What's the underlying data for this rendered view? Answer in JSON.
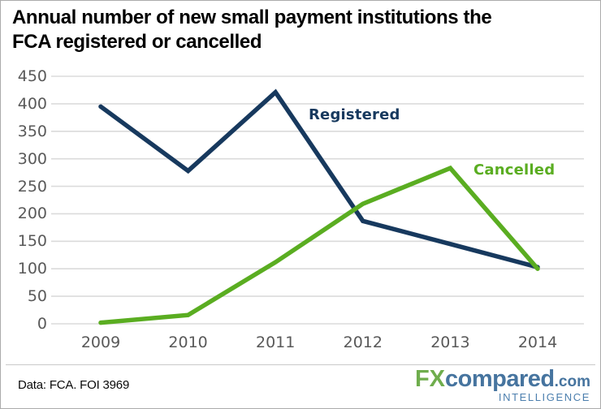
{
  "title": {
    "line1": "Annual number of new small payment institutions the",
    "line2": "FCA registered or cancelled"
  },
  "chart_data": {
    "type": "line",
    "title": "Annual number of new small payment institutions the FCA registered or cancelled",
    "x": [
      "2009",
      "2010",
      "2011",
      "2012",
      "2013",
      "2014"
    ],
    "series": [
      {
        "name": "Registered",
        "color": "#17395E",
        "values": [
          395,
          278,
          421,
          187,
          145,
          103
        ]
      },
      {
        "name": "Cancelled",
        "color": "#5AAD21",
        "values": [
          2,
          16,
          112,
          218,
          283,
          100
        ]
      }
    ],
    "yticks": [
      0,
      50,
      100,
      150,
      200,
      250,
      300,
      350,
      400,
      450
    ],
    "ylim": [
      0,
      450
    ],
    "grid": true,
    "gridline_color": "#DBDBDB",
    "tick_label_color": "#595959",
    "legend_position": "inline-labels-on-lines",
    "xlabel": "",
    "ylabel": ""
  },
  "footer": {
    "source": "Data: FCA. FOI 3969"
  },
  "logo": {
    "fx": "FX",
    "compared": "compared",
    "dotcom": ".com",
    "intelligence": "INTELLIGENCE",
    "green": "#6FAD4D",
    "blue": "#46749F",
    "intelligence_blue": "#4C7FAE"
  }
}
